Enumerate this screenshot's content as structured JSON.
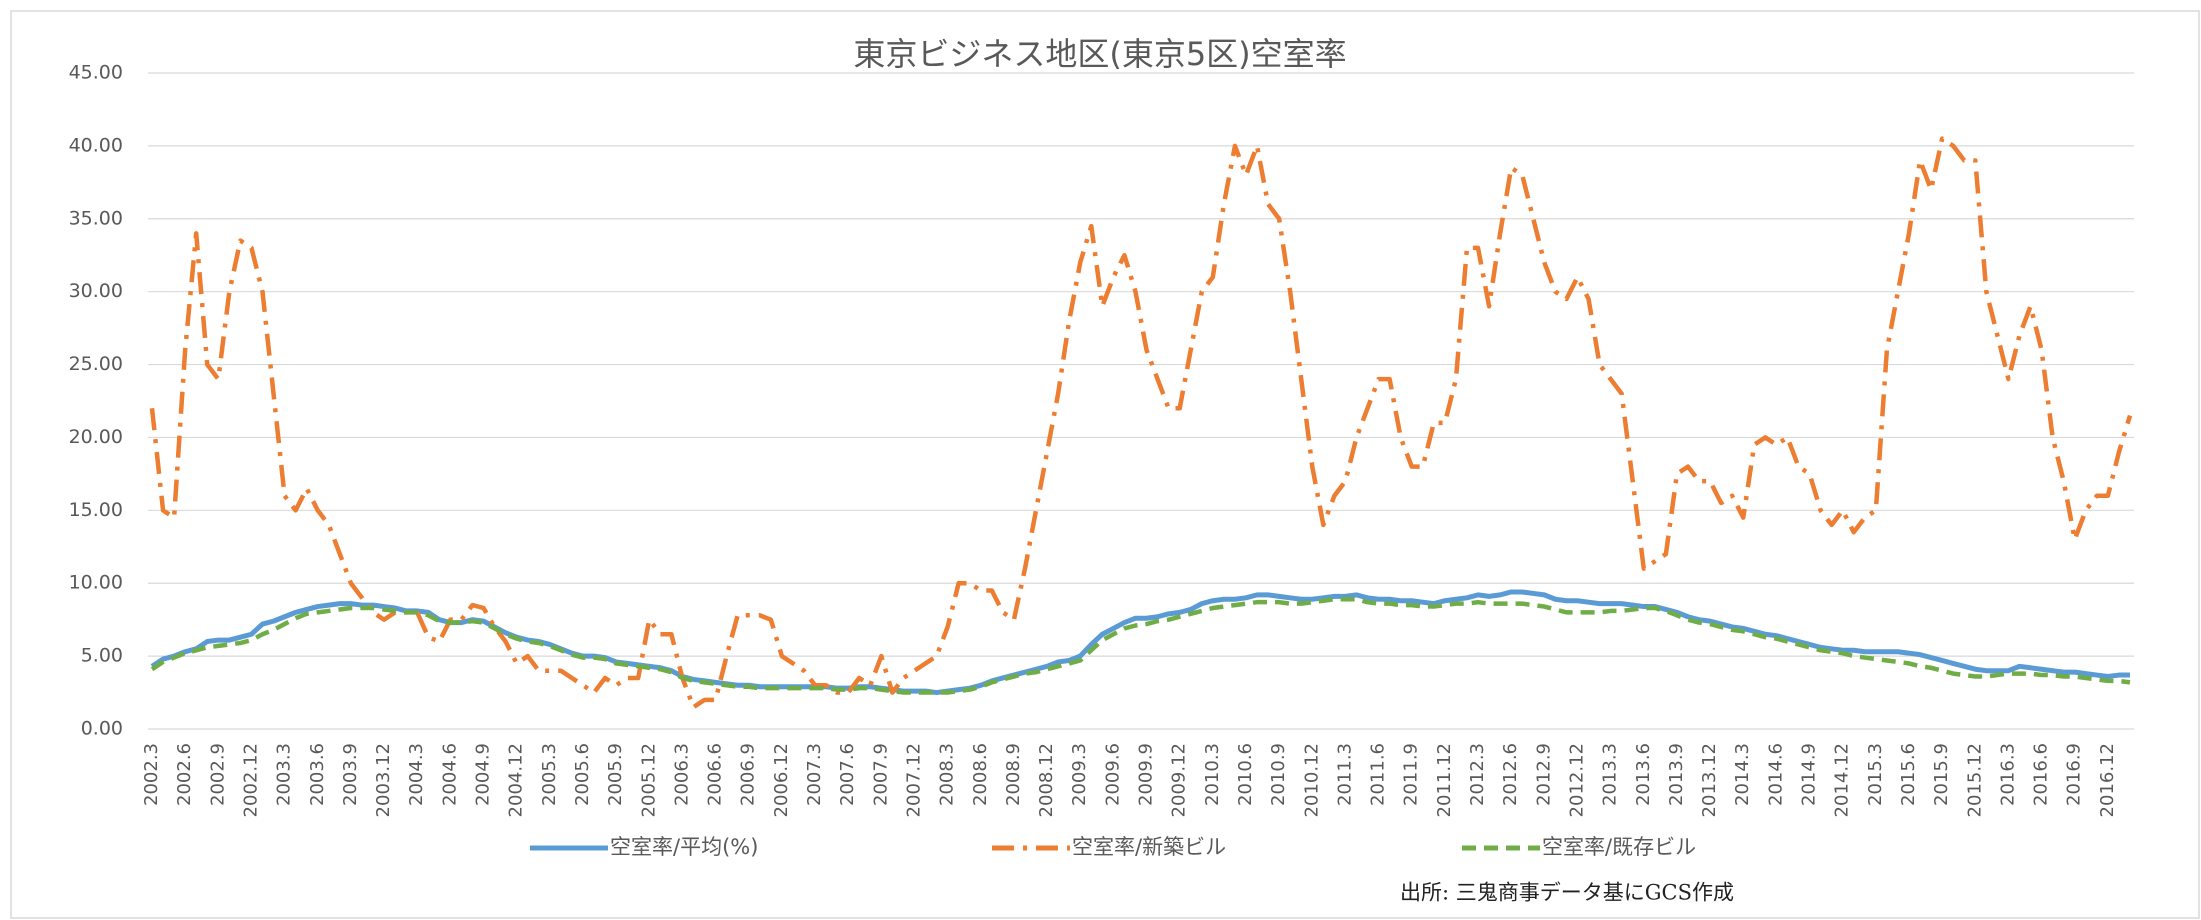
{
  "chart_data": {
    "type": "line",
    "title": "東京ビジネス地区(東京5区)空室率",
    "source": "出所: 三鬼商事データ基にGCS作成",
    "categories": [
      "2002.3",
      null,
      null,
      "2002.6",
      null,
      null,
      "2002.9",
      null,
      null,
      "2002.12",
      null,
      null,
      "2003.3",
      null,
      null,
      "2003.6",
      null,
      null,
      "2003.9",
      null,
      null,
      "2003.12",
      null,
      null,
      "2004.3",
      null,
      null,
      "2004.6",
      null,
      null,
      "2004.9",
      null,
      null,
      "2004.12",
      null,
      null,
      "2005.3",
      null,
      null,
      "2005.6",
      null,
      null,
      "2005.9",
      null,
      null,
      "2005.12",
      null,
      null,
      "2006.3",
      null,
      null,
      "2006.6",
      null,
      null,
      "2006.9",
      null,
      null,
      "2006.12",
      null,
      null,
      "2007.3",
      null,
      null,
      "2007.6",
      null,
      null,
      "2007.9",
      null,
      null,
      "2007.12",
      null,
      null,
      "2008.3",
      null,
      null,
      "2008.6",
      null,
      null,
      "2008.9",
      null,
      null,
      "2008.12",
      null,
      null,
      "2009.3",
      null,
      null,
      "2009.6",
      null,
      null,
      "2009.9",
      null,
      null,
      "2009.12",
      null,
      null,
      "2010.3",
      null,
      null,
      "2010.6",
      null,
      null,
      "2010.9",
      null,
      null,
      "2010.12",
      null,
      null,
      "2011.3",
      null,
      null,
      "2011.6",
      null,
      null,
      "2011.9",
      null,
      null,
      "2011.12",
      null,
      null,
      "2012.3",
      null,
      null,
      "2012.6",
      null,
      null,
      "2012.9",
      null,
      null,
      "2012.12",
      null,
      null,
      "2013.3",
      null,
      null,
      "2013.6",
      null,
      null,
      "2013.9",
      null,
      null,
      "2013.12",
      null,
      null,
      "2014.3",
      null,
      null,
      "2014.6",
      null,
      null,
      "2014.9",
      null,
      null,
      "2014.12",
      null,
      null,
      "2015.3",
      null,
      null,
      "2015.6",
      null,
      null,
      "2015.9",
      null,
      null,
      "2015.12",
      null,
      null,
      "2016.3",
      null,
      null,
      "2016.6",
      null,
      null,
      "2016.9",
      null,
      null,
      "2016.12",
      null,
      null
    ],
    "series": [
      {
        "name": "空室率/平均(%)",
        "color": "#5b9bd5",
        "style": "solid",
        "values": [
          4.3,
          4.8,
          5.0,
          5.3,
          5.5,
          6.0,
          6.1,
          6.1,
          6.3,
          6.5,
          7.2,
          7.4,
          7.7,
          8.0,
          8.2,
          8.4,
          8.5,
          8.6,
          8.6,
          8.5,
          8.5,
          8.4,
          8.3,
          8.1,
          8.1,
          8.0,
          7.5,
          7.3,
          7.3,
          7.5,
          7.4,
          7.0,
          6.6,
          6.3,
          6.1,
          6.0,
          5.8,
          5.5,
          5.2,
          5.0,
          5.0,
          4.9,
          4.6,
          4.5,
          4.4,
          4.3,
          4.2,
          4.0,
          3.6,
          3.4,
          3.3,
          3.2,
          3.1,
          3.0,
          3.0,
          2.9,
          2.9,
          2.9,
          2.9,
          2.9,
          2.9,
          2.9,
          2.8,
          2.8,
          2.9,
          2.9,
          2.8,
          2.7,
          2.6,
          2.6,
          2.6,
          2.5,
          2.6,
          2.7,
          2.8,
          3.0,
          3.3,
          3.5,
          3.7,
          3.9,
          4.1,
          4.3,
          4.6,
          4.7,
          5.0,
          5.8,
          6.5,
          6.9,
          7.3,
          7.6,
          7.6,
          7.7,
          7.9,
          8.0,
          8.2,
          8.6,
          8.8,
          8.9,
          8.9,
          9.0,
          9.2,
          9.2,
          9.1,
          9.0,
          8.9,
          8.9,
          9.0,
          9.1,
          9.1,
          9.2,
          9.0,
          8.9,
          8.9,
          8.8,
          8.8,
          8.7,
          8.6,
          8.8,
          8.9,
          9.0,
          9.2,
          9.1,
          9.2,
          9.4,
          9.4,
          9.3,
          9.2,
          8.9,
          8.8,
          8.8,
          8.7,
          8.6,
          8.6,
          8.6,
          8.5,
          8.4,
          8.4,
          8.2,
          8.0,
          7.7,
          7.5,
          7.4,
          7.2,
          7.0,
          6.9,
          6.7,
          6.5,
          6.4,
          6.2,
          6.0,
          5.8,
          5.6,
          5.5,
          5.4,
          5.4,
          5.3,
          5.3,
          5.3,
          5.3,
          5.2,
          5.1,
          4.9,
          4.7,
          4.5,
          4.3,
          4.1,
          4.0,
          4.0,
          4.0,
          4.3,
          4.2,
          4.1,
          4.0,
          3.9,
          3.9,
          3.8,
          3.7,
          3.6,
          3.7,
          3.7
        ]
      },
      {
        "name": "空室率/新築ビル",
        "color": "#ed7d31",
        "style": "dashdot",
        "values": [
          22,
          15,
          14.5,
          26,
          34,
          25,
          24,
          30,
          33.5,
          33,
          30,
          23,
          16,
          15,
          16.5,
          15,
          14,
          12,
          10,
          9,
          8,
          7.5,
          8,
          8,
          8,
          6.3,
          6,
          7.5,
          7.5,
          8.5,
          8.3,
          7,
          6,
          4.5,
          5,
          4,
          4,
          4,
          3.5,
          3,
          2.5,
          3.5,
          3,
          3.5,
          3.5,
          7.5,
          6.5,
          6.5,
          3.5,
          1.5,
          2,
          2,
          5,
          7.8,
          7.8,
          7.8,
          7.5,
          5,
          4.5,
          4,
          3,
          3,
          2.5,
          2.5,
          3.5,
          3,
          5,
          2.5,
          3.5,
          4,
          4.5,
          5,
          7,
          10,
          10,
          9.5,
          9.5,
          8,
          7.5,
          11,
          15,
          19,
          23,
          28,
          32,
          34.5,
          29,
          31,
          32.5,
          30,
          26,
          24,
          22,
          22,
          26,
          30,
          31,
          36,
          40,
          38,
          40,
          36,
          35,
          30,
          24,
          18,
          14,
          16,
          17,
          20,
          22,
          24,
          24,
          20,
          18,
          18,
          21,
          21,
          24,
          33,
          33,
          29,
          34,
          38.5,
          38,
          35,
          32,
          30,
          29.5,
          31,
          29.5,
          25,
          24,
          23,
          17,
          11,
          11.5,
          12,
          17.5,
          18,
          17,
          17,
          15.5,
          16,
          14.5,
          19.5,
          20,
          19.5,
          20,
          18,
          17.5,
          15,
          14,
          15,
          13.5,
          14.5,
          15,
          26,
          30,
          34,
          39,
          37,
          40.5,
          40,
          39,
          39,
          30,
          27,
          24,
          27,
          29,
          26,
          20,
          17,
          13,
          15,
          16,
          16,
          19,
          21.5
        ]
      },
      {
        "name": "空室率/既存ビル",
        "color": "#70ad47",
        "style": "dashed",
        "values": [
          4.1,
          4.6,
          4.9,
          5.2,
          5.4,
          5.6,
          5.7,
          5.8,
          5.9,
          6.1,
          6.5,
          6.8,
          7.2,
          7.6,
          7.9,
          8.0,
          8.1,
          8.2,
          8.3,
          8.3,
          8.3,
          8.2,
          8.1,
          8.0,
          8.0,
          7.8,
          7.4,
          7.3,
          7.3,
          7.4,
          7.3,
          6.9,
          6.5,
          6.2,
          6.0,
          5.9,
          5.7,
          5.4,
          5.1,
          4.9,
          4.9,
          4.8,
          4.5,
          4.4,
          4.3,
          4.2,
          4.1,
          3.9,
          3.5,
          3.3,
          3.2,
          3.1,
          3.0,
          2.9,
          2.9,
          2.8,
          2.8,
          2.8,
          2.8,
          2.8,
          2.8,
          2.8,
          2.7,
          2.7,
          2.8,
          2.8,
          2.7,
          2.6,
          2.5,
          2.5,
          2.5,
          2.5,
          2.5,
          2.6,
          2.7,
          2.9,
          3.2,
          3.4,
          3.6,
          3.8,
          3.9,
          4.1,
          4.3,
          4.5,
          4.7,
          5.4,
          6.1,
          6.5,
          6.9,
          7.1,
          7.2,
          7.4,
          7.5,
          7.7,
          7.9,
          8.1,
          8.3,
          8.4,
          8.5,
          8.6,
          8.7,
          8.7,
          8.7,
          8.6,
          8.6,
          8.7,
          8.8,
          8.9,
          8.9,
          8.9,
          8.7,
          8.6,
          8.6,
          8.5,
          8.5,
          8.4,
          8.4,
          8.5,
          8.6,
          8.6,
          8.7,
          8.6,
          8.6,
          8.6,
          8.6,
          8.5,
          8.4,
          8.2,
          8.0,
          8.0,
          8.0,
          8.0,
          8.1,
          8.1,
          8.2,
          8.3,
          8.3,
          8.1,
          7.8,
          7.5,
          7.3,
          7.2,
          7.0,
          6.8,
          6.7,
          6.5,
          6.3,
          6.2,
          6.0,
          5.8,
          5.6,
          5.4,
          5.3,
          5.2,
          5.0,
          4.9,
          4.8,
          4.7,
          4.6,
          4.5,
          4.3,
          4.2,
          4.0,
          3.8,
          3.7,
          3.6,
          3.6,
          3.7,
          3.8,
          3.8,
          3.8,
          3.7,
          3.7,
          3.6,
          3.6,
          3.5,
          3.4,
          3.3,
          3.3,
          3.2
        ]
      }
    ],
    "ylim": [
      0,
      45
    ],
    "yticks": [
      {
        "value": 0,
        "label": "0.00"
      },
      {
        "value": 5,
        "label": "5.00"
      },
      {
        "value": 10,
        "label": "10.00"
      },
      {
        "value": 15,
        "label": "15.00"
      },
      {
        "value": 20,
        "label": "20.00"
      },
      {
        "value": 25,
        "label": "25.00"
      },
      {
        "value": 30,
        "label": "30.00"
      },
      {
        "value": 35,
        "label": "35.00"
      },
      {
        "value": 40,
        "label": "40.00"
      },
      {
        "value": 45,
        "label": "45.00"
      }
    ],
    "grid": true
  }
}
